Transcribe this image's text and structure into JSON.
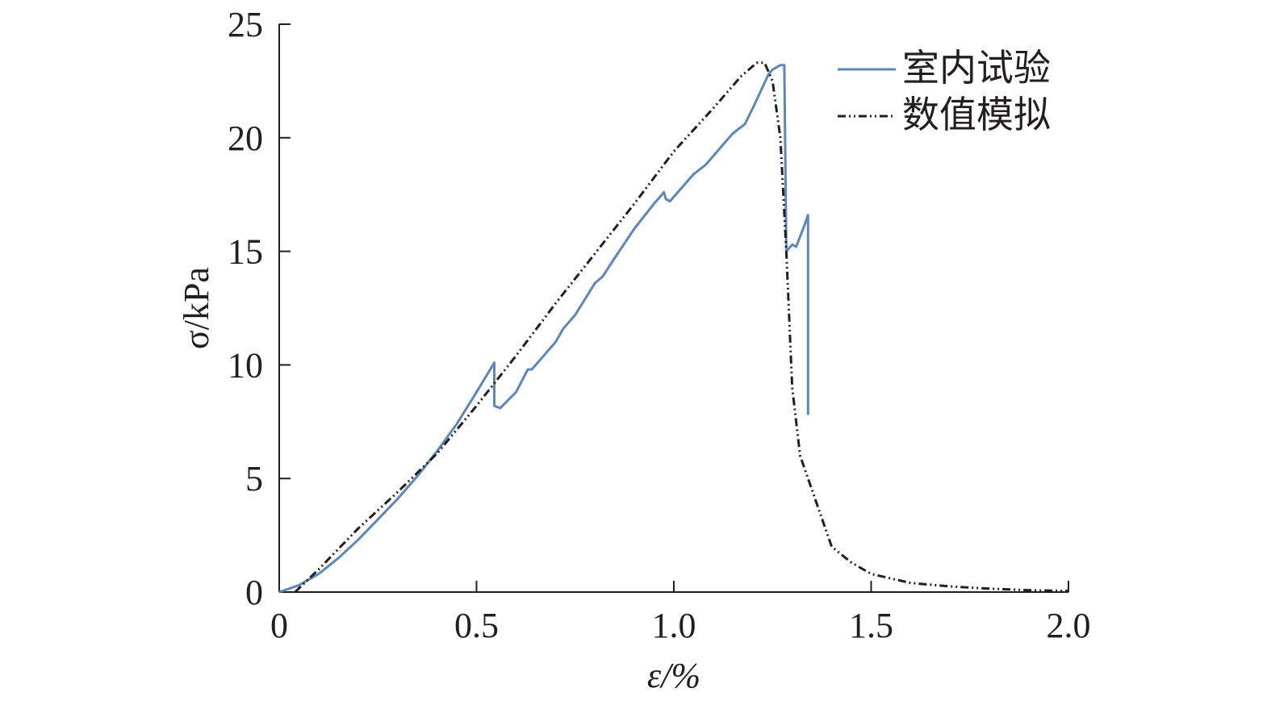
{
  "chart_data": {
    "type": "line",
    "title": "",
    "xlabel": "ε/%",
    "ylabel": "σ/kPa",
    "xlim": [
      0,
      2.0
    ],
    "ylim": [
      0,
      25
    ],
    "xticks": [
      0,
      0.5,
      1.0,
      1.5,
      2.0
    ],
    "xtick_labels": [
      "0",
      "0.5",
      "1.0",
      "1.5",
      "2.0"
    ],
    "yticks": [
      0,
      5,
      10,
      15,
      20,
      25
    ],
    "ytick_labels": [
      "0",
      "5",
      "10",
      "15",
      "20",
      "25"
    ],
    "grid": false,
    "legend_position": "top-right",
    "series": [
      {
        "name": "室内试验",
        "color": "#5b87bd",
        "style": "solid",
        "points": [
          [
            0,
            0
          ],
          [
            0.05,
            0.3
          ],
          [
            0.1,
            0.8
          ],
          [
            0.15,
            1.5
          ],
          [
            0.2,
            2.3
          ],
          [
            0.25,
            3.2
          ],
          [
            0.3,
            4.1
          ],
          [
            0.35,
            5.1
          ],
          [
            0.4,
            6.2
          ],
          [
            0.45,
            7.4
          ],
          [
            0.5,
            8.8
          ],
          [
            0.545,
            10.1
          ],
          [
            0.545,
            8.2
          ],
          [
            0.56,
            8.1
          ],
          [
            0.6,
            8.8
          ],
          [
            0.63,
            9.8
          ],
          [
            0.64,
            9.8
          ],
          [
            0.7,
            11.0
          ],
          [
            0.72,
            11.6
          ],
          [
            0.75,
            12.2
          ],
          [
            0.8,
            13.6
          ],
          [
            0.82,
            13.9
          ],
          [
            0.85,
            14.7
          ],
          [
            0.9,
            16.0
          ],
          [
            0.95,
            17.1
          ],
          [
            0.975,
            17.6
          ],
          [
            0.98,
            17.3
          ],
          [
            0.99,
            17.2
          ],
          [
            1.0,
            17.4
          ],
          [
            1.05,
            18.4
          ],
          [
            1.08,
            18.8
          ],
          [
            1.1,
            19.2
          ],
          [
            1.15,
            20.2
          ],
          [
            1.18,
            20.6
          ],
          [
            1.2,
            21.3
          ],
          [
            1.24,
            22.8
          ],
          [
            1.25,
            23.0
          ],
          [
            1.27,
            23.2
          ],
          [
            1.28,
            23.2
          ],
          [
            1.285,
            15.0
          ],
          [
            1.3,
            15.3
          ],
          [
            1.31,
            15.2
          ],
          [
            1.33,
            16.1
          ],
          [
            1.34,
            16.6
          ],
          [
            1.34,
            7.8
          ]
        ]
      },
      {
        "name": "数值模拟",
        "color": "#231f20",
        "style": "dash-dot-dot",
        "points": [
          [
            0.04,
            0
          ],
          [
            0.1,
            1.0
          ],
          [
            0.2,
            2.8
          ],
          [
            0.3,
            4.4
          ],
          [
            0.4,
            6.1
          ],
          [
            0.5,
            8.2
          ],
          [
            0.6,
            10.4
          ],
          [
            0.7,
            12.7
          ],
          [
            0.8,
            14.9
          ],
          [
            0.9,
            17.1
          ],
          [
            1.0,
            19.4
          ],
          [
            1.1,
            21.3
          ],
          [
            1.17,
            22.7
          ],
          [
            1.21,
            23.3
          ],
          [
            1.23,
            23.3
          ],
          [
            1.25,
            22.5
          ],
          [
            1.27,
            20.0
          ],
          [
            1.285,
            15.0
          ],
          [
            1.3,
            9.0
          ],
          [
            1.32,
            6.0
          ],
          [
            1.35,
            4.5
          ],
          [
            1.4,
            2.0
          ],
          [
            1.45,
            1.3
          ],
          [
            1.5,
            0.8
          ],
          [
            1.6,
            0.4
          ],
          [
            1.7,
            0.25
          ],
          [
            1.8,
            0.15
          ],
          [
            1.9,
            0.08
          ],
          [
            2.0,
            0.05
          ]
        ]
      }
    ]
  }
}
